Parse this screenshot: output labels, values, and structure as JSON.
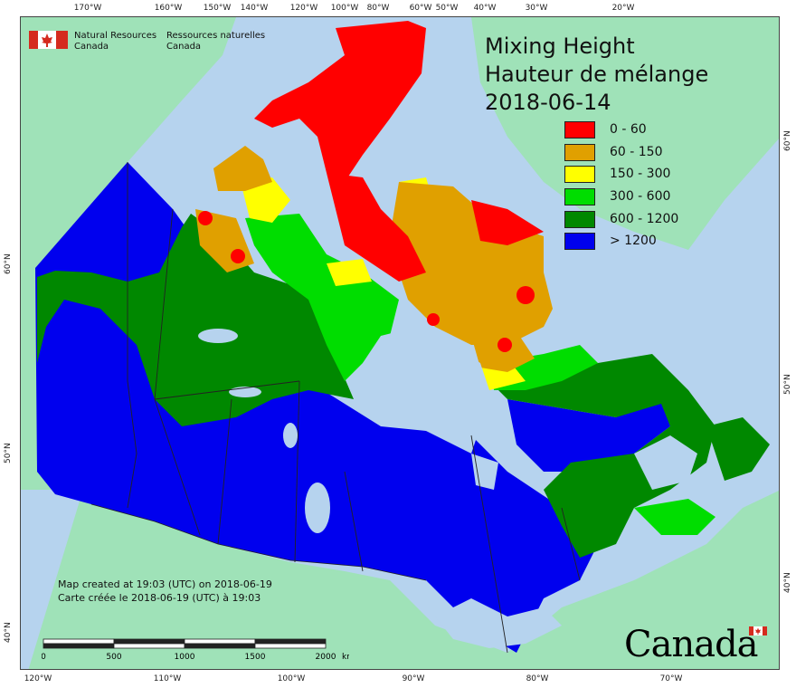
{
  "title": {
    "line1": "Mixing Height",
    "line2": "Hauteur de mélange",
    "line3": "2018-06-14"
  },
  "legend": [
    {
      "label": "0 - 60",
      "color": "#ff0000"
    },
    {
      "label": "60 - 150",
      "color": "#e0a000"
    },
    {
      "label": "150 - 300",
      "color": "#ffff00"
    },
    {
      "label": "300 - 600",
      "color": "#00dd00"
    },
    {
      "label": "600 - 1200",
      "color": "#008800"
    },
    {
      "label": "> 1200",
      "color": "#0000ee"
    }
  ],
  "agency": {
    "en_line1": "Natural Resources",
    "en_line2": "Canada",
    "fr_line1": "Ressources naturelles",
    "fr_line2": "Canada"
  },
  "timestamp": {
    "en": "Map created at 19:03 (UTC) on 2018-06-19",
    "fr": "Carte créée le 2018-06-19 (UTC) à 19:03"
  },
  "scale_bar": {
    "labels": [
      "0",
      "500",
      "1000",
      "1500",
      "2000"
    ],
    "unit": "km"
  },
  "graticule": {
    "top": [
      "170°W",
      "160°W",
      "150°W",
      "140°W",
      "120°W",
      "100°W",
      "80°W",
      "60°W",
      "50°W",
      "40°W",
      "30°W",
      "20°W"
    ],
    "bottom": [
      "120°W",
      "110°W",
      "100°W",
      "90°W",
      "80°W",
      "70°W"
    ],
    "left": [
      "60°N",
      "50°N",
      "40°N"
    ],
    "right": [
      "60°N",
      "50°N",
      "40°N"
    ]
  },
  "wordmark": "Canada",
  "colors": {
    "ocean": "#b6d3ee",
    "neighbor_land": "#9fe2b8",
    "lakes": "#b6d3ee",
    "boundary": "#222222"
  }
}
